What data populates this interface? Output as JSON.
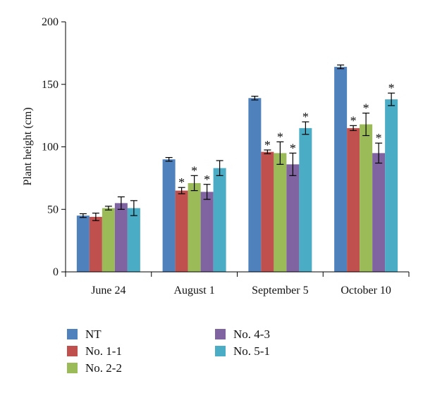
{
  "chart_data": {
    "type": "bar",
    "ylabel": "Plant height (cm)",
    "xlabel": "",
    "ylim": [
      0,
      200
    ],
    "yticks": [
      0,
      50,
      100,
      150,
      200
    ],
    "categories": [
      "June 24",
      "August 1",
      "September 5",
      "October 10"
    ],
    "significance_marker": "*",
    "legend_position": "bottom",
    "series": [
      {
        "name": "NT",
        "color": "#4f81bd",
        "values": [
          45,
          90,
          139,
          164
        ],
        "errors": [
          1.5,
          1.5,
          1.5,
          1.5
        ],
        "significant": [
          false,
          false,
          false,
          false
        ]
      },
      {
        "name": "No. 1-1",
        "color": "#c0504d",
        "values": [
          44,
          65,
          96,
          115
        ],
        "errors": [
          3,
          2.5,
          1.5,
          2
        ],
        "significant": [
          false,
          true,
          true,
          true
        ]
      },
      {
        "name": "No. 2-2",
        "color": "#9bbb59",
        "values": [
          51,
          71,
          95,
          118
        ],
        "errors": [
          1.5,
          6,
          9,
          9
        ],
        "significant": [
          false,
          true,
          true,
          true
        ]
      },
      {
        "name": "No. 4-3",
        "color": "#8064a2",
        "values": [
          55,
          64,
          86,
          95
        ],
        "errors": [
          5,
          6,
          9,
          8
        ],
        "significant": [
          false,
          true,
          true,
          true
        ]
      },
      {
        "name": "No. 5-1",
        "color": "#4bacc6",
        "values": [
          51,
          83,
          115,
          138
        ],
        "errors": [
          6,
          6,
          5,
          5
        ],
        "significant": [
          false,
          false,
          true,
          true
        ]
      }
    ]
  }
}
